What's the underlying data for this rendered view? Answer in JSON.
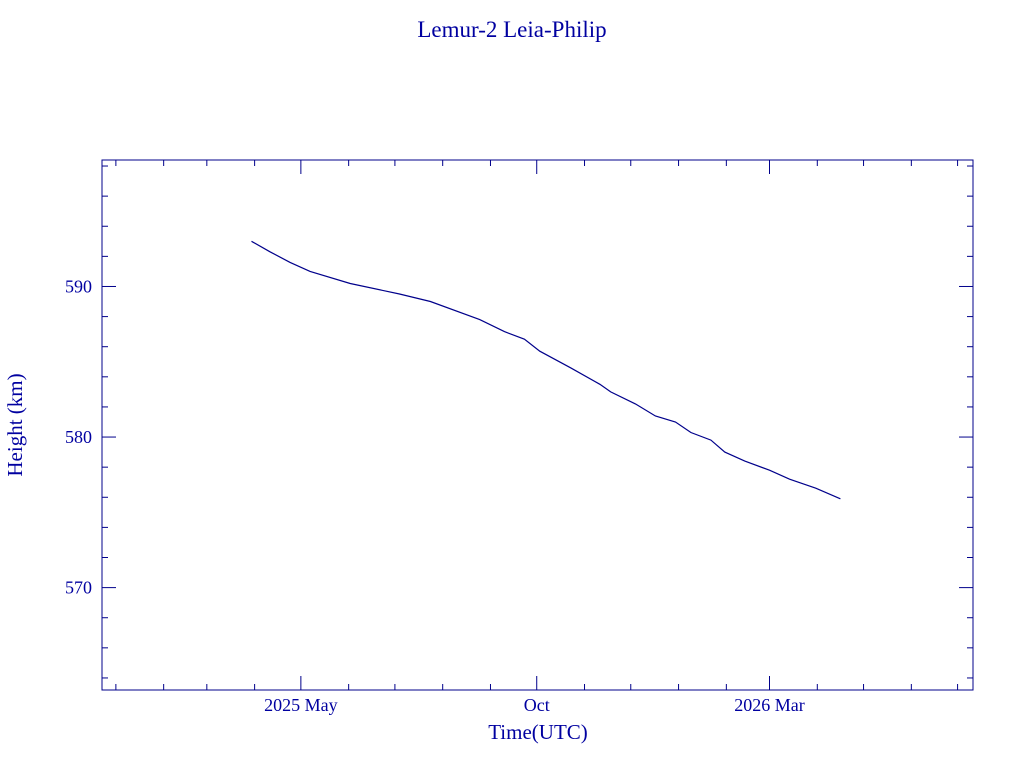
{
  "colors": {
    "ink": "#00008b"
  },
  "chart_data": {
    "type": "line",
    "title": "Lemur-2 Leia-Philip",
    "xlabel": "Time(UTC)",
    "ylabel": "Height (km)",
    "xlim": [
      "2024-12-23",
      "2026-07-11"
    ],
    "ylim": [
      563.2,
      598.4
    ],
    "grid": false,
    "x_major_ticks": [
      {
        "date": "2025-05-01",
        "label": "2025 May"
      },
      {
        "date": "2025-10-01",
        "label": "Oct"
      },
      {
        "date": "2026-03-01",
        "label": "2026 Mar"
      }
    ],
    "y_major_ticks": [
      570,
      580,
      590
    ],
    "y_tick_labels": [
      "570",
      "580",
      "590"
    ],
    "y_minor_step": 2,
    "series": [
      {
        "name": "Height",
        "x": [
          "2025-03-30",
          "2025-04-11",
          "2025-04-24",
          "2025-05-07",
          "2025-06-02",
          "2025-07-04",
          "2025-07-24",
          "2025-08-25",
          "2025-09-10",
          "2025-09-23",
          "2025-10-03",
          "2025-10-23",
          "2025-11-11",
          "2025-11-18",
          "2025-12-04",
          "2025-12-17",
          "2025-12-30",
          "2026-01-09",
          "2026-01-22",
          "2026-01-31",
          "2026-02-13",
          "2026-03-01",
          "2026-03-14",
          "2026-03-31",
          "2026-04-16"
        ],
        "y": [
          593.0,
          592.3,
          591.6,
          591.0,
          590.2,
          589.5,
          589.0,
          587.8,
          587.0,
          586.5,
          585.7,
          584.6,
          583.5,
          583.0,
          582.2,
          581.4,
          581.0,
          580.3,
          579.8,
          579.0,
          578.4,
          577.8,
          577.2,
          576.6,
          575.9
        ]
      }
    ]
  }
}
